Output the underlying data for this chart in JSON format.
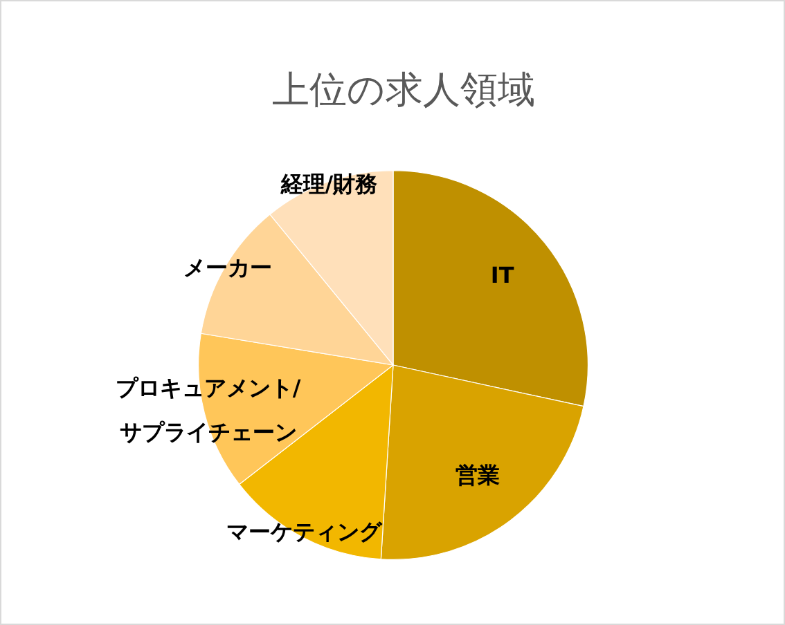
{
  "chart_data": {
    "type": "pie",
    "title": "上位の求人領域",
    "categories": [
      "IT",
      "営業",
      "マーケティング",
      "プロキュアメント/サプライチェーン",
      "メーカー",
      "経理/財務"
    ],
    "values": [
      28.4,
      22.6,
      13.5,
      13.1,
      11.5,
      10.9
    ],
    "colors": [
      "#bf9000",
      "#d9a300",
      "#f2b700",
      "#ffc659",
      "#ffd597",
      "#ffe0ba"
    ]
  }
}
